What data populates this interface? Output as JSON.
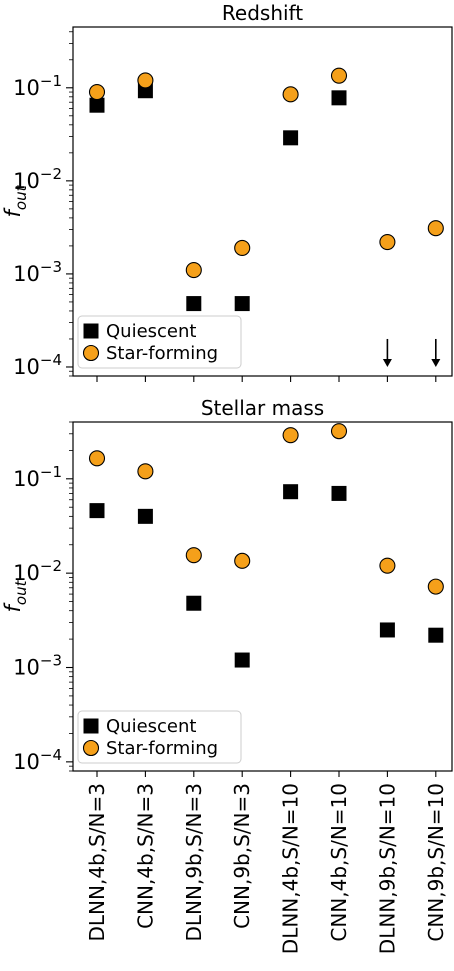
{
  "chart_data": [
    {
      "type": "scatter",
      "title": "Redshift",
      "xlabel": "",
      "ylabel": "f_out",
      "ylabel_main": "f",
      "ylabel_sub": "out",
      "yscale": "log",
      "ylim": [
        8e-05,
        0.45
      ],
      "yticks": [
        {
          "value": 0.1,
          "base": "10",
          "exp": "−1"
        },
        {
          "value": 0.01,
          "base": "10",
          "exp": "−2"
        },
        {
          "value": 0.001,
          "base": "10",
          "exp": "−3"
        },
        {
          "value": 0.0001,
          "base": "10",
          "exp": "−4"
        }
      ],
      "categories": [
        "DLNN,4b,S/N=3",
        "CNN,4b,S/N=3",
        "DLNN,9b,S/N=3",
        "CNN,9b,S/N=3",
        "DLNN,4b,S/N=10",
        "CNN,4b,S/N=10",
        "DLNN,9b,S/N=10",
        "CNN,9b,S/N=10"
      ],
      "show_category_labels": false,
      "series": [
        {
          "name": "Quiescent",
          "marker": "square",
          "color": "#000000",
          "values": [
            0.065,
            0.093,
            0.00048,
            0.00048,
            0.029,
            0.078,
            null,
            null
          ]
        },
        {
          "name": "Star-forming",
          "marker": "circle",
          "color": "#f5a01a",
          "values": [
            0.09,
            0.12,
            0.0011,
            0.0019,
            0.085,
            0.135,
            0.0022,
            0.0031
          ]
        }
      ],
      "upper_limits": [
        {
          "category_index": 6,
          "from": 0.0002,
          "to": 0.0001
        },
        {
          "category_index": 7,
          "from": 0.0002,
          "to": 0.0001
        }
      ],
      "legend": {
        "placement": "lower-left",
        "entries": [
          "Quiescent",
          "Star-forming"
        ]
      }
    },
    {
      "type": "scatter",
      "title": "Stellar mass",
      "xlabel": "",
      "ylabel": "f_out",
      "ylabel_main": "f",
      "ylabel_sub": "out",
      "yscale": "log",
      "ylim": [
        8e-05,
        0.4
      ],
      "yticks": [
        {
          "value": 0.1,
          "base": "10",
          "exp": "−1"
        },
        {
          "value": 0.01,
          "base": "10",
          "exp": "−2"
        },
        {
          "value": 0.001,
          "base": "10",
          "exp": "−3"
        },
        {
          "value": 0.0001,
          "base": "10",
          "exp": "−4"
        }
      ],
      "categories": [
        "DLNN,4b,S/N=3",
        "CNN,4b,S/N=3",
        "DLNN,9b,S/N=3",
        "CNN,9b,S/N=3",
        "DLNN,4b,S/N=10",
        "CNN,4b,S/N=10",
        "DLNN,9b,S/N=10",
        "CNN,9b,S/N=10"
      ],
      "show_category_labels": true,
      "series": [
        {
          "name": "Quiescent",
          "marker": "square",
          "color": "#000000",
          "values": [
            0.046,
            0.04,
            0.0048,
            0.0012,
            0.073,
            0.07,
            0.0025,
            0.0022
          ]
        },
        {
          "name": "Star-forming",
          "marker": "circle",
          "color": "#f5a01a",
          "values": [
            0.165,
            0.12,
            0.0155,
            0.0135,
            0.29,
            0.32,
            0.012,
            0.0072
          ]
        }
      ],
      "upper_limits": [],
      "legend": {
        "placement": "lower-left",
        "entries": [
          "Quiescent",
          "Star-forming"
        ]
      }
    }
  ]
}
